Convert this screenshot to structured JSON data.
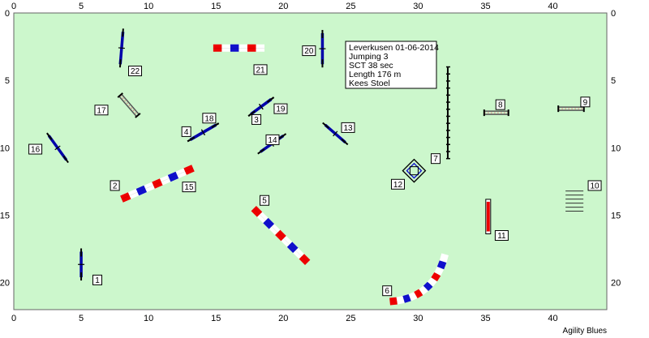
{
  "course": {
    "info_lines": [
      "Leverkusen 01-06-2014",
      "Jumping 3",
      "SCT 38 sec",
      "Length 176 m",
      "Kees Stoel"
    ],
    "watermark": "Agility Blues",
    "x_ticks": [
      "0",
      "5",
      "10",
      "15",
      "20",
      "25",
      "30",
      "35",
      "40"
    ],
    "y_ticks": [
      "0",
      "5",
      "10",
      "15",
      "20"
    ],
    "x_range": [
      0,
      44
    ],
    "y_range": [
      0,
      22
    ],
    "colors": {
      "field": "#ccf7cc",
      "tunnel_red": "#ee0000",
      "tunnel_blue": "#1010cc",
      "jump_bar": "#0000aa",
      "wing": "#000000"
    }
  },
  "obstacles": [
    {
      "label": "1",
      "type": "jump",
      "x1": 5.0,
      "y1": 17.7,
      "x2": 5.0,
      "y2": 19.6
    },
    {
      "label": "2",
      "type": "tunnel",
      "x1": 8.0,
      "y1": 13.8,
      "x2": 13.3,
      "y2": 11.5
    },
    {
      "label": "3",
      "type": "jump",
      "x1": 17.6,
      "y1": 7.5,
      "x2": 19.1,
      "y2": 6.4
    },
    {
      "label": "4",
      "type": "jump",
      "x1": 13.1,
      "y1": 9.4,
      "x2": 15.0,
      "y2": 8.3
    },
    {
      "label": "5",
      "type": "tunnel",
      "x1": 17.8,
      "y1": 14.5,
      "x2": 21.8,
      "y2": 18.5
    },
    {
      "label": "6",
      "type": "tunnel-curve",
      "x1": 27.9,
      "y1": 21.4,
      "cx": 31.2,
      "cy": 21.2,
      "x2": 32.0,
      "y2": 17.9
    },
    {
      "label": "7",
      "type": "dogwalk",
      "x1": 32.2,
      "y1": 4.0,
      "x2": 32.2,
      "y2": 10.8
    },
    {
      "label": "8",
      "type": "double",
      "x1": 34.9,
      "y1": 7.4,
      "x2": 36.7,
      "y2": 7.4
    },
    {
      "label": "9",
      "type": "double",
      "x1": 40.4,
      "y1": 7.1,
      "x2": 42.3,
      "y2": 7.1
    },
    {
      "label": "10",
      "type": "weaves",
      "x1": 41.6,
      "y1": 13.2,
      "x2": 41.6,
      "y2": 14.7
    },
    {
      "label": "11",
      "type": "tire",
      "x1": 35.2,
      "y1": 14.0,
      "x2": 35.2,
      "y2": 16.2
    },
    {
      "label": "12",
      "type": "table",
      "x1": 29.7,
      "y1": 11.7,
      "x2": 29.7,
      "y2": 11.7
    },
    {
      "label": "13",
      "type": "jump",
      "x1": 23.1,
      "y1": 8.3,
      "x2": 24.6,
      "y2": 9.6
    },
    {
      "label": "14",
      "type": "jump",
      "x1": 18.3,
      "y1": 10.3,
      "x2": 20.0,
      "y2": 9.1
    },
    {
      "label": "15",
      "type": "tunnel",
      "x1": 8.0,
      "y1": 13.8,
      "x2": 13.3,
      "y2": 11.5
    },
    {
      "label": "16",
      "type": "jump",
      "x1": 2.6,
      "y1": 9.1,
      "x2": 3.9,
      "y2": 10.9
    },
    {
      "label": "17",
      "type": "double",
      "x1": 7.9,
      "y1": 6.1,
      "x2": 9.2,
      "y2": 7.6
    },
    {
      "label": "18",
      "type": "jump",
      "x1": 13.1,
      "y1": 9.4,
      "x2": 15.0,
      "y2": 8.3
    },
    {
      "label": "19",
      "type": "jump",
      "x1": 17.6,
      "y1": 7.5,
      "x2": 19.1,
      "y2": 6.4
    },
    {
      "label": "20",
      "type": "jump",
      "x1": 22.9,
      "y1": 1.5,
      "x2": 22.9,
      "y2": 3.8
    },
    {
      "label": "21",
      "type": "tunnel",
      "x1": 14.8,
      "y1": 2.6,
      "x2": 18.6,
      "y2": 2.6
    },
    {
      "label": "22",
      "type": "jump",
      "x1": 8.1,
      "y1": 1.4,
      "x2": 7.9,
      "y2": 3.8
    }
  ],
  "number_labels": [
    {
      "text": "1",
      "x": 6.2,
      "y": 19.8
    },
    {
      "text": "2",
      "x": 7.5,
      "y": 12.8
    },
    {
      "text": "15",
      "x": 13.0,
      "y": 12.9
    },
    {
      "text": "3",
      "x": 18.0,
      "y": 7.9
    },
    {
      "text": "19",
      "x": 19.8,
      "y": 7.1
    },
    {
      "text": "4",
      "x": 12.8,
      "y": 8.8
    },
    {
      "text": "18",
      "x": 14.5,
      "y": 7.8
    },
    {
      "text": "5",
      "x": 18.6,
      "y": 13.9
    },
    {
      "text": "6",
      "x": 27.7,
      "y": 20.6
    },
    {
      "text": "7",
      "x": 31.3,
      "y": 10.8
    },
    {
      "text": "8",
      "x": 36.1,
      "y": 6.8
    },
    {
      "text": "9",
      "x": 42.4,
      "y": 6.6
    },
    {
      "text": "10",
      "x": 43.1,
      "y": 12.8
    },
    {
      "text": "11",
      "x": 36.2,
      "y": 16.5
    },
    {
      "text": "12",
      "x": 28.5,
      "y": 12.7
    },
    {
      "text": "13",
      "x": 24.8,
      "y": 8.5
    },
    {
      "text": "14",
      "x": 19.2,
      "y": 9.4
    },
    {
      "text": "16",
      "x": 1.6,
      "y": 10.1
    },
    {
      "text": "17",
      "x": 6.5,
      "y": 7.2
    },
    {
      "text": "20",
      "x": 21.9,
      "y": 2.8
    },
    {
      "text": "21",
      "x": 18.3,
      "y": 4.2
    },
    {
      "text": "22",
      "x": 9.0,
      "y": 4.3
    }
  ]
}
